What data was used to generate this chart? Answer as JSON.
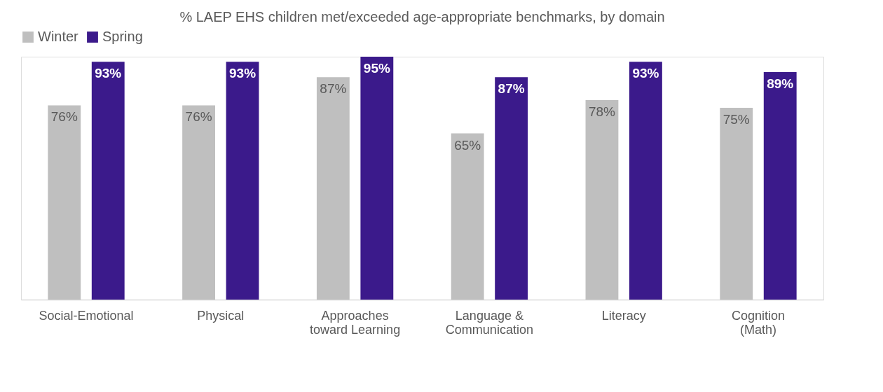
{
  "chart_data": {
    "type": "bar",
    "title": "% LAEP EHS children met/exceeded age-appropriate benchmarks, by domain",
    "categories": [
      "Social-Emotional",
      "Physical",
      "Approaches\ntoward Learning",
      "Language &\nCommunication",
      "Literacy",
      "Cognition\n(Math)"
    ],
    "series": [
      {
        "name": "Winter",
        "color": "#bfbfbf",
        "values": [
          76,
          76,
          87,
          65,
          78,
          75
        ],
        "value_labels": [
          "76%",
          "76%",
          "87%",
          "65%",
          "78%",
          "75%"
        ]
      },
      {
        "name": "Spring",
        "color": "#3b1a8b",
        "values": [
          93,
          93,
          95,
          87,
          93,
          89
        ],
        "value_labels": [
          "93%",
          "93%",
          "95%",
          "87%",
          "93%",
          "89%"
        ]
      }
    ],
    "legend": "top",
    "grid": false
  }
}
